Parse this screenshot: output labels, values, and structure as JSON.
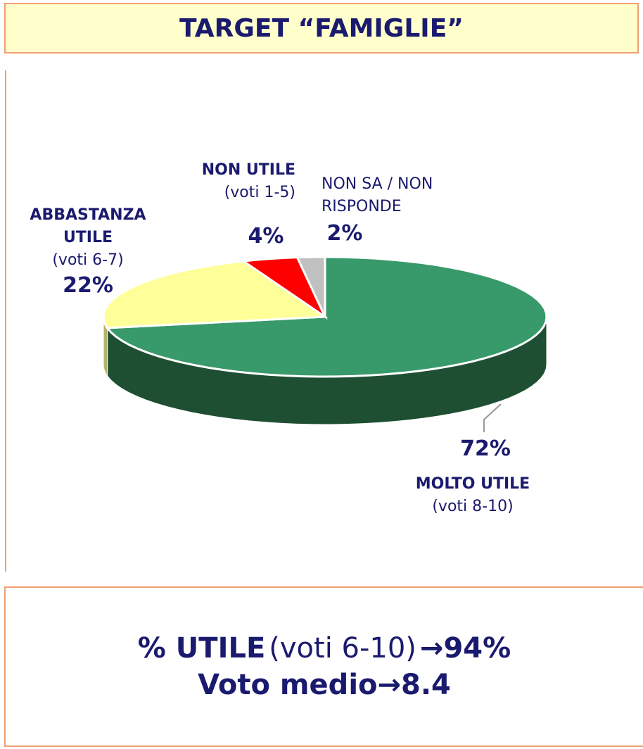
{
  "chart_data": {
    "type": "pie",
    "title": "TARGET “FAMIGLIE”",
    "categories": [
      "MOLTO UTILE",
      "ABBASTANZA UTILE",
      "NON UTILE",
      "NON SA / NON RISPONDE"
    ],
    "category_notes": [
      "(voti 8-10)",
      "(voti 6-7)",
      "(voti 1-5)",
      null
    ],
    "values": [
      72,
      22,
      4,
      2
    ],
    "value_labels": [
      "72%",
      "22%",
      "4%",
      "2%"
    ],
    "colors": [
      "#38996a",
      "#ffff99",
      "#ff0000",
      "#c0c0c0"
    ],
    "side_colors": [
      "#1f4f33",
      "#b3b36b",
      "#a00000",
      "#808080"
    ]
  },
  "summary": {
    "line1": [
      "% UTILE",
      "(voti 6-10)",
      "→",
      "94%"
    ],
    "line2": [
      "Voto medio",
      "→",
      "8.4"
    ]
  }
}
